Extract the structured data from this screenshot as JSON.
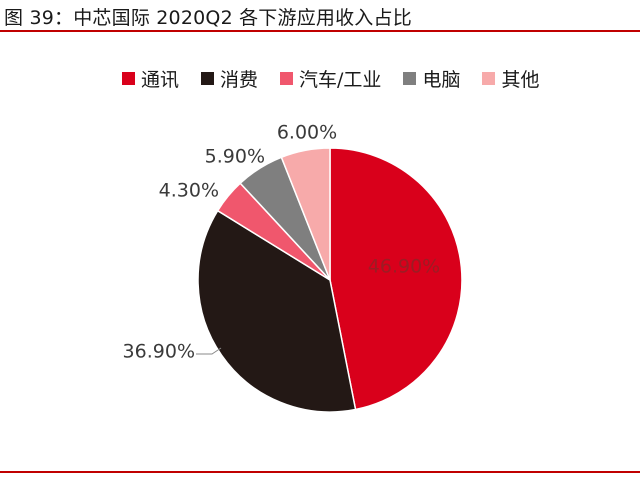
{
  "figure": {
    "title": "图 39：中芯国际 2020Q2 各下游应用收入占比"
  },
  "chart_data": {
    "type": "pie",
    "title": "",
    "legend_position": "top",
    "start_angle_deg": 0,
    "direction": "clockwise",
    "slices": [
      {
        "name": "通讯",
        "value": 46.9,
        "label": "46.90%",
        "color": "#d9001b"
      },
      {
        "name": "消费",
        "value": 36.9,
        "label": "36.90%",
        "color": "#231815"
      },
      {
        "name": "汽车/工业",
        "value": 4.3,
        "label": "4.30%",
        "color": "#f0576d"
      },
      {
        "name": "电脑",
        "value": 5.9,
        "label": "5.90%",
        "color": "#7f7f7f"
      },
      {
        "name": "其他",
        "value": 6.0,
        "label": "6.00%",
        "color": "#f7aaaa"
      }
    ]
  }
}
